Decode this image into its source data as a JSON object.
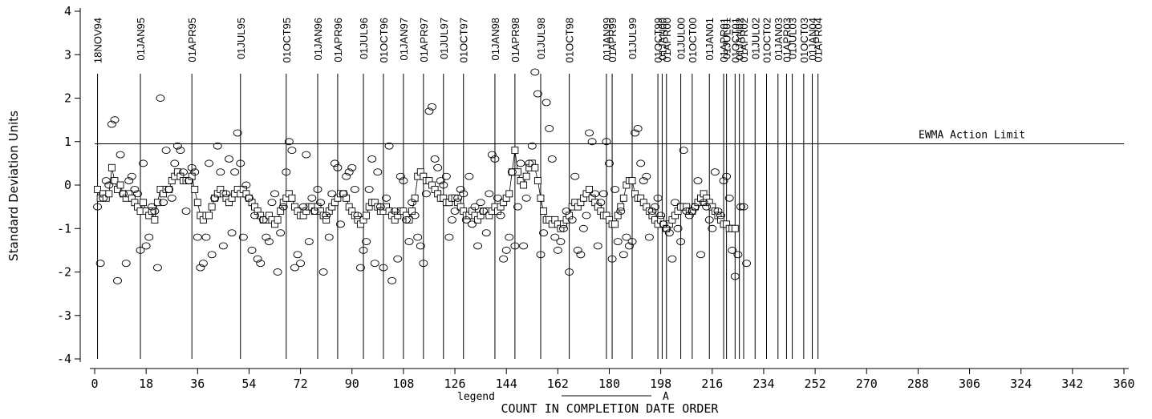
{
  "chart_data": {
    "type": "line",
    "title": "",
    "xlabel": "COUNT IN COMPLETION DATE ORDER",
    "ylabel": "Standard Deviation Units",
    "xlim": [
      0,
      360
    ],
    "ylim": [
      -4,
      4
    ],
    "xticks": [
      0,
      18,
      36,
      54,
      72,
      90,
      108,
      126,
      144,
      162,
      180,
      198,
      216,
      234,
      252,
      270,
      288,
      306,
      324,
      342,
      360
    ],
    "xtick_labels": [
      "0",
      "18",
      "36",
      "54",
      "72",
      "90",
      "108",
      "126",
      "144",
      "162",
      "180",
      "198",
      "216",
      "234",
      "252",
      "270",
      "288",
      "306",
      "324",
      "342",
      "360"
    ],
    "yticks": [
      -4,
      -3,
      -2,
      -1,
      0,
      1,
      2,
      3,
      4
    ],
    "ytick_labels": [
      "-4",
      "-3",
      "-2",
      "-1",
      "0",
      "1",
      "2",
      "3",
      "4"
    ],
    "grid": false,
    "action_limit": {
      "value": 0.95,
      "label": "EWMA Action Limit"
    },
    "legend": {
      "prefix": "legend",
      "label": "A",
      "position": "bottom"
    },
    "date_markers": [
      {
        "x": 1,
        "label": "18NOV94"
      },
      {
        "x": 16,
        "label": "01JAN95"
      },
      {
        "x": 34,
        "label": "01APR95"
      },
      {
        "x": 51,
        "label": "01JUL95"
      },
      {
        "x": 67,
        "label": "01OCT95"
      },
      {
        "x": 78,
        "label": "01JAN96"
      },
      {
        "x": 85,
        "label": "01APR96"
      },
      {
        "x": 94,
        "label": "01JUL96"
      },
      {
        "x": 101,
        "label": "01OCT96"
      },
      {
        "x": 108,
        "label": "01JAN97"
      },
      {
        "x": 115,
        "label": "01APR97"
      },
      {
        "x": 122,
        "label": "01JUL97"
      },
      {
        "x": 129,
        "label": "01OCT97"
      },
      {
        "x": 140,
        "label": "01JAN98"
      },
      {
        "x": 147,
        "label": "01APR98"
      },
      {
        "x": 156,
        "label": "01JUL98"
      },
      {
        "x": 166,
        "label": "01OCT98"
      },
      {
        "x": 179,
        "label": "01JAN99"
      },
      {
        "x": 181,
        "label": "01APR99"
      },
      {
        "x": 188,
        "label": "01JUL99"
      },
      {
        "x": 197,
        "label": "01OCT99"
      },
      {
        "x": 198.5,
        "label": "01JAN00"
      },
      {
        "x": 200,
        "label": "01APR00"
      },
      {
        "x": 205,
        "label": "01JUL00"
      },
      {
        "x": 209,
        "label": "01OCT00"
      },
      {
        "x": 215,
        "label": "01JAN01"
      },
      {
        "x": 220,
        "label": "01APR01"
      },
      {
        "x": 221,
        "label": "01JUL01"
      },
      {
        "x": 224,
        "label": "01OCT01"
      },
      {
        "x": 225.5,
        "label": "01JAN02"
      },
      {
        "x": 227,
        "label": "01APR02"
      },
      {
        "x": 231,
        "label": "01JUL02"
      },
      {
        "x": 235,
        "label": "01OCT02"
      },
      {
        "x": 239,
        "label": "01JAN03"
      },
      {
        "x": 242,
        "label": "01APR03"
      },
      {
        "x": 244,
        "label": "01JUL03"
      },
      {
        "x": 248,
        "label": "01OCT03"
      },
      {
        "x": 251,
        "label": "01JAN04"
      },
      {
        "x": 253,
        "label": "01APR04"
      }
    ],
    "series": [
      {
        "marker": "square",
        "connected": true,
        "values": [
          -0.1,
          -0.3,
          -0.2,
          -0.3,
          -0.2,
          0.4,
          0.1,
          -0.1,
          0.0,
          -0.2,
          -0.3,
          -0.2,
          -0.3,
          -0.4,
          -0.5,
          -0.6,
          -0.4,
          -0.6,
          -0.7,
          -0.6,
          -0.8,
          -0.4,
          -0.1,
          -0.2,
          -0.1,
          -0.1,
          0.1,
          0.2,
          0.3,
          0.2,
          0.1,
          0.1,
          0.1,
          0.2,
          -0.1,
          -0.4,
          -0.7,
          -0.8,
          -0.7,
          -0.7,
          -0.5,
          -0.3,
          -0.2,
          -0.1,
          -0.2,
          -0.3,
          -0.4,
          -0.3,
          -0.2,
          -0.1,
          -0.2,
          -0.1,
          -0.2,
          -0.3,
          -0.4,
          -0.5,
          -0.6,
          -0.7,
          -0.8,
          -0.8,
          -0.7,
          -0.8,
          -0.9,
          -0.8,
          -0.6,
          -0.4,
          -0.3,
          -0.2,
          -0.3,
          -0.5,
          -0.6,
          -0.7,
          -0.7,
          -0.6,
          -0.5,
          -0.5,
          -0.6,
          -0.5,
          -0.6,
          -0.7,
          -0.8,
          -0.6,
          -0.5,
          -0.4,
          -0.3,
          -0.2,
          -0.2,
          -0.3,
          -0.5,
          -0.6,
          -0.7,
          -0.8,
          -0.9,
          -0.8,
          -0.7,
          -0.5,
          -0.4,
          -0.4,
          -0.5,
          -0.6,
          -0.6,
          -0.5,
          -0.6,
          -0.7,
          -0.8,
          -0.7,
          -0.6,
          -0.6,
          -0.7,
          -0.8,
          -0.6,
          -0.3,
          0.2,
          0.3,
          0.2,
          0.1,
          0.1,
          0.0,
          -0.1,
          -0.2,
          -0.3,
          -0.3,
          -0.4,
          -0.4,
          -0.3,
          -0.3,
          -0.4,
          -0.5,
          -0.6,
          -0.7,
          -0.7,
          -0.6,
          -0.7,
          -0.8,
          -0.7,
          -0.6,
          -0.6,
          -0.7,
          -0.6,
          -0.5,
          -0.6,
          -0.5,
          -0.4,
          -0.3,
          -0.2,
          0.3,
          0.8,
          0.3,
          0.1,
          0.0,
          0.2,
          0.4,
          0.5,
          0.4,
          0.1,
          -0.3,
          -0.6,
          -0.8,
          -0.8,
          -0.9,
          -0.8,
          -0.9,
          -1.0,
          -0.9,
          -0.8,
          -0.7,
          -0.5,
          -0.4,
          -0.5,
          -0.4,
          -0.3,
          -0.2,
          -0.1,
          -0.3,
          -0.4,
          -0.5,
          -0.6,
          -0.7,
          -0.7,
          -0.8,
          -0.9,
          -0.9,
          -0.7,
          -0.5,
          -0.3,
          0.0,
          0.1,
          0.1,
          -0.2,
          -0.3,
          -0.3,
          -0.4,
          -0.5,
          -0.6,
          -0.7,
          -0.8,
          -0.9,
          -0.8,
          -0.9,
          -1.0,
          -0.9,
          -0.8,
          -0.7,
          -0.6,
          -0.5,
          -0.5,
          -0.5,
          -0.6,
          -0.6,
          -0.5,
          -0.4,
          -0.3,
          -0.2,
          -0.3,
          -0.4,
          -0.5,
          -0.6,
          -0.7,
          -0.8,
          -0.9,
          -0.9,
          -1.0,
          -1.0,
          -1.0
        ]
      },
      {
        "marker": "circle",
        "connected": false,
        "values": [
          -0.5,
          -1.8,
          -0.3,
          0.1,
          0.0,
          1.4,
          1.5,
          -2.2,
          0.7,
          -0.2,
          -1.8,
          0.1,
          0.2,
          -0.1,
          -0.2,
          -1.5,
          0.5,
          -1.4,
          -1.2,
          -0.5,
          -0.6,
          -1.9,
          2.0,
          -0.4,
          0.8,
          -0.1,
          -0.3,
          0.5,
          0.9,
          0.8,
          0.3,
          -0.6,
          0.1,
          0.4,
          0.3,
          -1.2,
          -1.9,
          -1.8,
          -1.2,
          0.5,
          -1.6,
          -0.3,
          0.9,
          0.3,
          -1.4,
          -0.2,
          0.6,
          -1.1,
          0.3,
          1.2,
          0.5,
          -1.2,
          0.0,
          -0.3,
          -1.5,
          -0.7,
          -1.7,
          -1.8,
          -0.8,
          -1.2,
          -1.3,
          -0.4,
          -0.2,
          -2.0,
          -1.1,
          -0.5,
          0.3,
          1.0,
          0.8,
          -1.9,
          -1.6,
          -1.8,
          -0.5,
          0.7,
          -1.3,
          -0.3,
          -0.6,
          -0.1,
          -0.4,
          -2.0,
          -0.7,
          -1.2,
          -0.2,
          0.5,
          0.4,
          -0.9,
          -0.2,
          0.2,
          0.3,
          0.4,
          -0.1,
          -0.7,
          -1.9,
          -1.5,
          -1.3,
          -0.1,
          0.6,
          -1.8,
          0.3,
          -0.5,
          -1.9,
          -0.3,
          0.9,
          -2.2,
          -0.6,
          -1.7,
          0.2,
          0.1,
          -0.8,
          -1.3,
          -0.4,
          -0.7,
          -1.2,
          -1.4,
          -1.8,
          -0.2,
          1.7,
          1.8,
          0.6,
          0.4,
          0.1,
          0.0,
          0.2,
          -1.2,
          -0.8,
          -0.6,
          -0.3,
          -0.1,
          -0.2,
          -0.8,
          0.2,
          -0.9,
          -0.5,
          -1.4,
          -0.4,
          -0.6,
          -1.1,
          -0.2,
          0.7,
          0.6,
          -0.3,
          -0.7,
          -1.7,
          -1.5,
          -1.2,
          0.3,
          -1.4,
          -0.5,
          0.5,
          -1.4,
          -0.3,
          0.5,
          0.9,
          2.6,
          2.1,
          -1.6,
          -1.1,
          1.9,
          1.3,
          0.6,
          -1.2,
          -1.5,
          -1.3,
          -1.0,
          -0.6,
          -2.0,
          -0.8,
          0.2,
          -1.5,
          -1.6,
          -1.0,
          -0.7,
          1.2,
          1.0,
          -0.2,
          -1.4,
          -0.4,
          -0.2,
          1.0,
          0.5,
          -1.7,
          -0.1,
          -1.3,
          -0.6,
          -1.6,
          -1.2,
          -1.4,
          -1.3,
          1.2,
          1.3,
          0.5,
          0.1,
          0.2,
          -1.2,
          -0.6,
          -0.5,
          -0.3,
          -0.7,
          -0.9,
          -1.0,
          -1.1,
          -1.7,
          -0.4,
          -1.0,
          -1.3,
          0.8,
          -0.6,
          -0.7,
          -0.6,
          -0.5,
          0.1,
          -1.6,
          -0.4,
          -0.5,
          -0.8,
          -1.0,
          0.3,
          -0.6,
          -0.7,
          0.1,
          0.2,
          -0.3,
          -1.5,
          -2.1,
          -1.6,
          -0.5,
          -0.5,
          -1.8
        ]
      }
    ]
  }
}
